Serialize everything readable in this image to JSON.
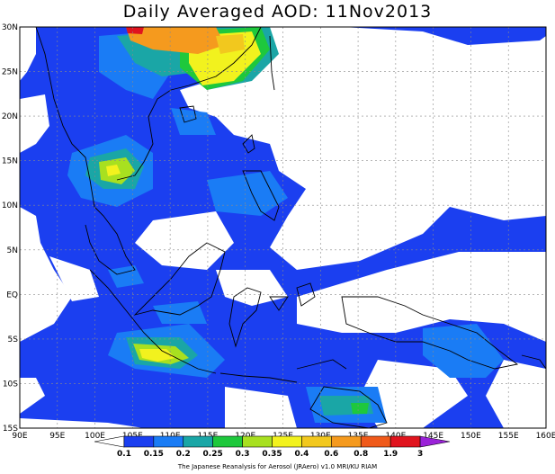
{
  "title": "Daily Averaged AOD: 11Nov2013",
  "credit": "The Japanese Reanalysis for Aerosol (JRAero) v1.0 MRI/KU RIAM",
  "map": {
    "lon_range": [
      90,
      160
    ],
    "lat_range": [
      -15,
      30
    ],
    "lon_ticks": [
      "90E",
      "95E",
      "100E",
      "105E",
      "110E",
      "115E",
      "120E",
      "125E",
      "130E",
      "135E",
      "140E",
      "145E",
      "150E",
      "155E",
      "160E"
    ],
    "lat_ticks": [
      "15S",
      "10S",
      "5S",
      "EQ",
      "5N",
      "10N",
      "15N",
      "20N",
      "25N",
      "30N"
    ],
    "grid": true
  },
  "colorbar": {
    "labels": [
      "0.1",
      "0.15",
      "0.2",
      "0.25",
      "0.3",
      "0.35",
      "0.4",
      "0.6",
      "0.8",
      "1.9",
      "3"
    ],
    "colors": [
      "#ffffff",
      "#1b3ff0",
      "#1a7cf5",
      "#1aa6a6",
      "#1ec83c",
      "#a8e020",
      "#f2f21e",
      "#f2c81e",
      "#f59a1e",
      "#f05a1a",
      "#e0141e",
      "#9a22d8"
    ]
  }
}
